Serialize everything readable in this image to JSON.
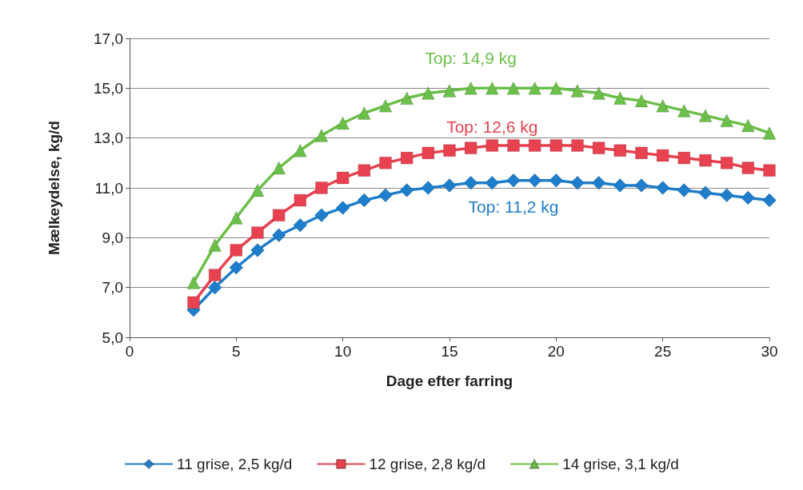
{
  "chart_data": {
    "type": "line",
    "xlabel": "Dage efter farring",
    "ylabel": "Mælkeydelse, kg/d",
    "x": [
      3,
      4,
      5,
      6,
      7,
      8,
      9,
      10,
      11,
      12,
      13,
      14,
      15,
      16,
      17,
      18,
      19,
      20,
      21,
      22,
      23,
      24,
      25,
      26,
      27,
      28,
      29,
      30
    ],
    "xlim": [
      0,
      30
    ],
    "xticks": [
      0,
      5,
      10,
      15,
      20,
      25,
      30
    ],
    "ylim": [
      5,
      17
    ],
    "yticks": [
      {
        "value": 5,
        "label": "5,0"
      },
      {
        "value": 7,
        "label": "7,0"
      },
      {
        "value": 9,
        "label": "9,0"
      },
      {
        "value": 11,
        "label": "11,0"
      },
      {
        "value": 13,
        "label": "13,0"
      },
      {
        "value": 15,
        "label": "15,0"
      },
      {
        "value": 17,
        "label": "17,0"
      }
    ],
    "grid": "y",
    "legend": "bottom",
    "series": [
      {
        "name": "11 grise, 2,5 kg/d",
        "color": "#1f7ecb",
        "marker": "diamond",
        "values": [
          6.1,
          7.0,
          7.8,
          8.5,
          9.1,
          9.5,
          9.9,
          10.2,
          10.5,
          10.7,
          10.9,
          11.0,
          11.1,
          11.2,
          11.2,
          11.3,
          11.3,
          11.3,
          11.2,
          11.2,
          11.1,
          11.1,
          11.0,
          10.9,
          10.8,
          10.7,
          10.6,
          10.5
        ]
      },
      {
        "name": "12 grise, 2,8 kg/d",
        "color": "#e8414f",
        "marker": "square",
        "values": [
          6.4,
          7.5,
          8.5,
          9.2,
          9.9,
          10.5,
          11.0,
          11.4,
          11.7,
          12.0,
          12.2,
          12.4,
          12.5,
          12.6,
          12.7,
          12.7,
          12.7,
          12.7,
          12.7,
          12.6,
          12.5,
          12.4,
          12.3,
          12.2,
          12.1,
          12.0,
          11.8,
          11.7
        ]
      },
      {
        "name": "14 grise, 3,1 kg/d",
        "color": "#6cbf4a",
        "marker": "triangle",
        "values": [
          7.2,
          8.7,
          9.8,
          10.9,
          11.8,
          12.5,
          13.1,
          13.6,
          14.0,
          14.3,
          14.6,
          14.8,
          14.9,
          15.0,
          15.0,
          15.0,
          15.0,
          15.0,
          14.9,
          14.8,
          14.6,
          14.5,
          14.3,
          14.1,
          13.9,
          13.7,
          13.5,
          13.2
        ]
      }
    ],
    "annotations": [
      "Top: 11,2 kg",
      "Top: 12,6 kg",
      "Top: 14,9 kg"
    ]
  }
}
